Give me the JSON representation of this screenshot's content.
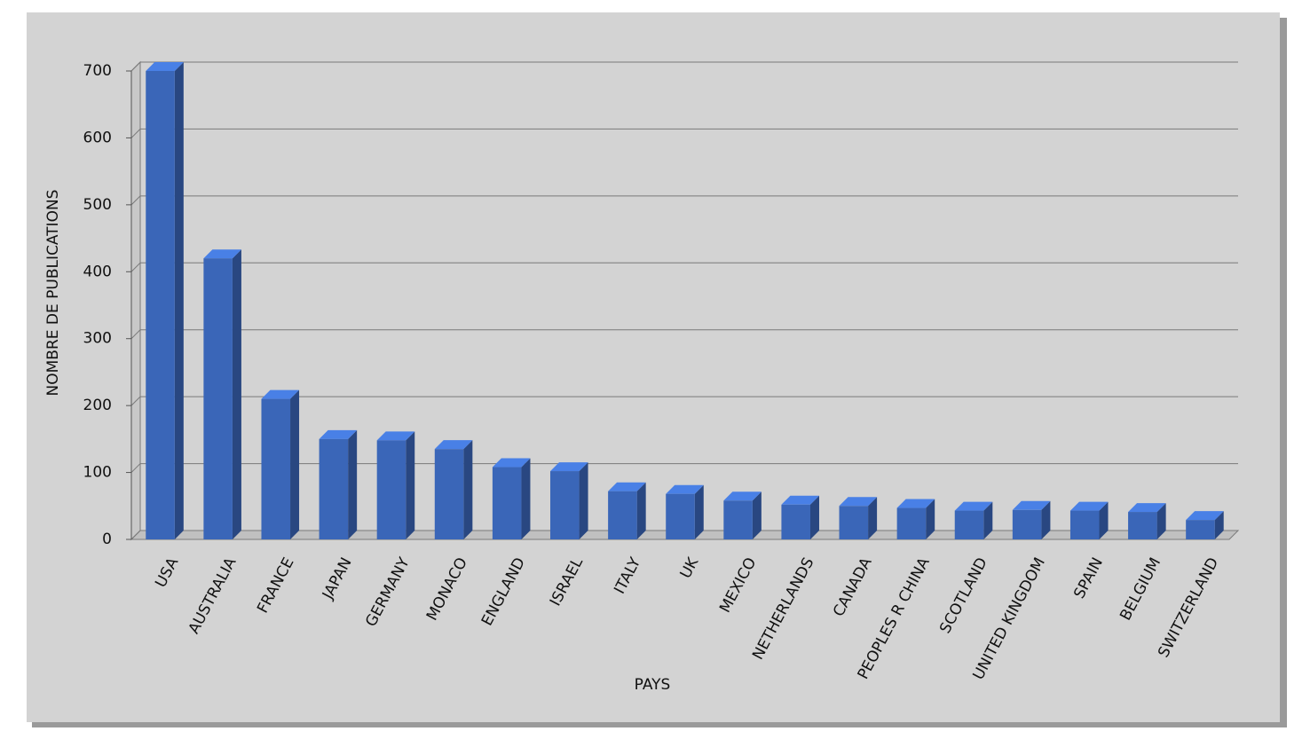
{
  "chart_data": {
    "type": "bar",
    "x_label": "PAYS",
    "y_label": "NOMBRE DE PUBLICATIONS",
    "categories": [
      "USA",
      "AUSTRALIA",
      "FRANCE",
      "JAPAN",
      "GERMANY",
      "MONACO",
      "ENGLAND",
      "ISRAEL",
      "ITALY",
      "UK",
      "MEXICO",
      "NETHERLANDS",
      "CANADA",
      "PEOPLES R CHINA",
      "SCOTLAND",
      "UNITED KINGDOM",
      "SPAIN",
      "BELGIUM",
      "SWITZERLAND"
    ],
    "values": [
      700,
      420,
      210,
      150,
      148,
      135,
      108,
      102,
      72,
      68,
      58,
      52,
      50,
      47,
      43,
      44,
      43,
      41,
      29
    ],
    "color": "#3a66b8",
    "ylim": [
      0,
      700
    ],
    "yticks": [
      0,
      100,
      200,
      300,
      400,
      500,
      600,
      700
    ],
    "grid": true
  }
}
